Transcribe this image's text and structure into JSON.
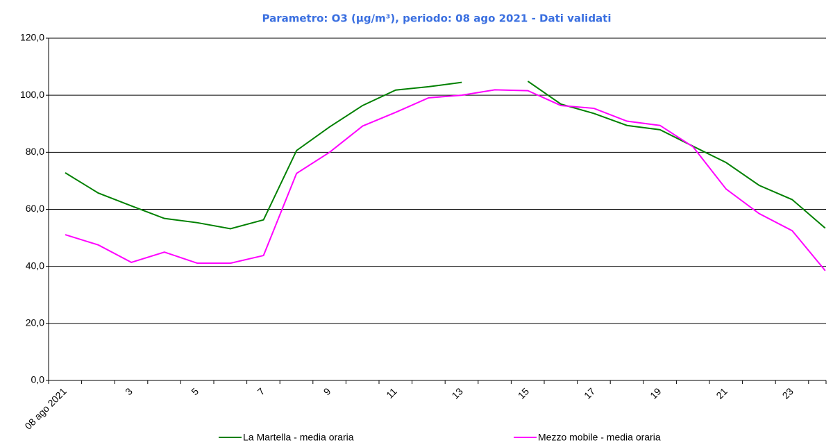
{
  "chart_data": {
    "type": "line",
    "title": "Parametro: O3 (µg/m³), periodo: 08 ago 2021 - Dati validati",
    "categories": [
      "08 ago 2021",
      null,
      "3",
      null,
      "5",
      null,
      "7",
      null,
      "9",
      null,
      "11",
      null,
      "13",
      null,
      "15",
      null,
      "17",
      null,
      "19",
      null,
      "21",
      null,
      "23",
      null
    ],
    "series": [
      {
        "name": "La Martella - media oraria",
        "color": "#008000",
        "values": [
          72.8,
          65.7,
          61.2,
          56.8,
          55.3,
          53.2,
          56.3,
          80.6,
          88.9,
          96.4,
          101.8,
          103.0,
          104.5,
          null,
          104.9,
          96.9,
          93.6,
          89.4,
          87.9,
          82.1,
          76.4,
          68.4,
          63.4,
          53.4
        ]
      },
      {
        "name": "Mezzo mobile - media oraria",
        "color": "#ff00ff",
        "values": [
          51.1,
          47.5,
          41.4,
          45.0,
          41.1,
          41.1,
          43.8,
          72.6,
          80.0,
          89.2,
          94.0,
          99.1,
          100.0,
          101.9,
          101.6,
          96.4,
          95.4,
          90.9,
          89.4,
          81.9,
          67.1,
          58.5,
          52.5,
          38.5
        ]
      }
    ],
    "ylim": [
      0,
      120
    ],
    "yticks": [
      {
        "value": 0,
        "label": "0,0"
      },
      {
        "value": 20,
        "label": "20,0"
      },
      {
        "value": 40,
        "label": "40,0"
      },
      {
        "value": 60,
        "label": "60,0"
      },
      {
        "value": 80,
        "label": "80,0"
      },
      {
        "value": 100,
        "label": "100,0"
      },
      {
        "value": 120,
        "label": "120,0"
      }
    ],
    "grid": true
  }
}
